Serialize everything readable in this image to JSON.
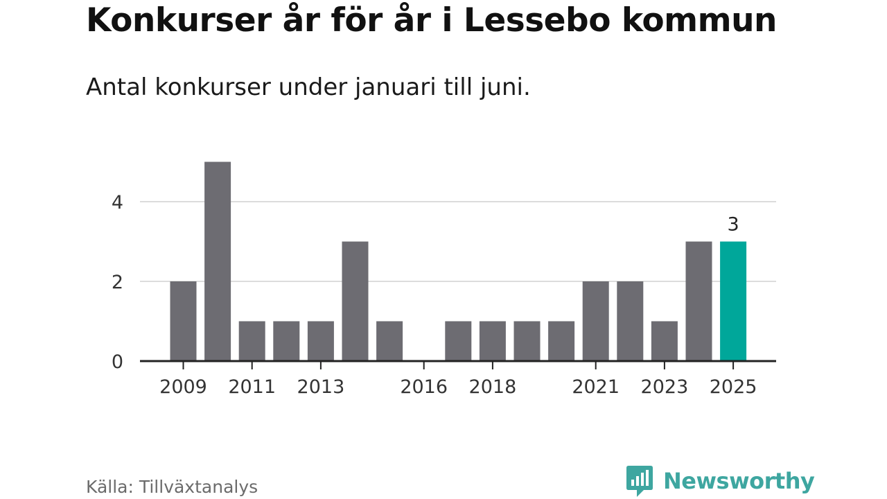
{
  "title": "Konkurser år för år i Lessebo kommun",
  "subtitle": "Antal konkurser under januari till juni.",
  "source": "Källa: Tillväxtanalys",
  "brand": {
    "name": "Newsworthy",
    "icon": "newsworthy-logo-icon"
  },
  "colors": {
    "bar": "#6d6c72",
    "highlight": "#00a79a",
    "grid": "#dcdcdc",
    "axis": "#222222",
    "brand": "#3ea6a0"
  },
  "chart_data": {
    "type": "bar",
    "title": "Konkurser år för år i Lessebo kommun",
    "subtitle": "Antal konkurser under januari till juni.",
    "categories": [
      "2009",
      "2010",
      "2011",
      "2012",
      "2013",
      "2014",
      "2015",
      "2016",
      "2017",
      "2018",
      "2019",
      "2020",
      "2021",
      "2022",
      "2023",
      "2024",
      "2025"
    ],
    "values": [
      2,
      5,
      1,
      1,
      1,
      3,
      1,
      0,
      1,
      1,
      1,
      1,
      2,
      2,
      1,
      3,
      3
    ],
    "x_tick_labels": [
      "2009",
      "2011",
      "2013",
      "2016",
      "2018",
      "2021",
      "2023",
      "2025"
    ],
    "y_ticks": [
      0,
      2,
      4
    ],
    "ylim": [
      0,
      5
    ],
    "grid": true,
    "highlight_category": "2025",
    "data_labels": [
      {
        "category": "2025",
        "text": "3"
      }
    ],
    "xlabel": "",
    "ylabel": ""
  }
}
